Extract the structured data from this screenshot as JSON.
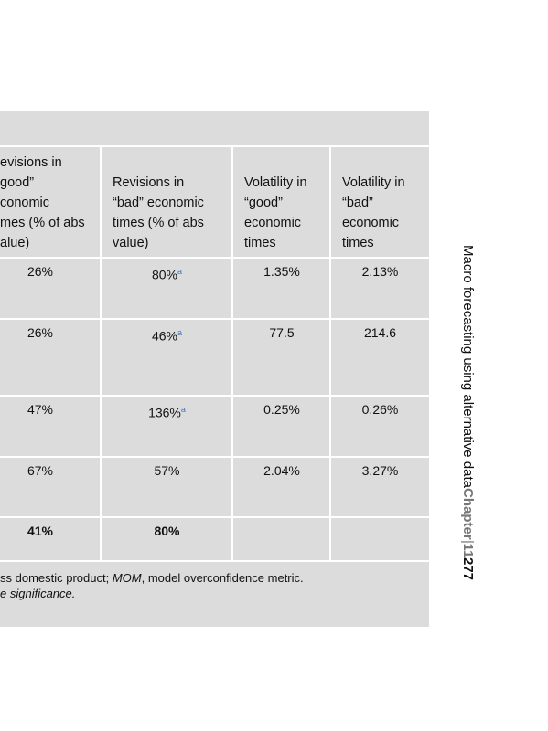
{
  "table": {
    "headers": [
      [
        "evisions in",
        "good”",
        "conomic",
        "mes (% of abs",
        "alue)"
      ],
      [
        "Revisions in",
        "“bad” economic",
        "times (% of abs",
        "value)"
      ],
      [
        "Volatility in",
        "“good”",
        "economic",
        "times"
      ],
      [
        "Volatility in",
        "“bad”",
        "economic",
        "times"
      ]
    ],
    "rows": [
      {
        "cells": [
          {
            "text": "26%"
          },
          {
            "text": "80%",
            "note": "a"
          },
          {
            "text": "1.35%"
          },
          {
            "text": "2.13%"
          }
        ]
      },
      {
        "cells": [
          {
            "text": "26%"
          },
          {
            "text": "46%",
            "note": "a"
          },
          {
            "text": "77.5"
          },
          {
            "text": "214.6"
          }
        ]
      },
      {
        "cells": [
          {
            "text": "47%"
          },
          {
            "text": "136%",
            "note": "a"
          },
          {
            "text": "0.25%"
          },
          {
            "text": "0.26%"
          }
        ]
      },
      {
        "cells": [
          {
            "text": "67%"
          },
          {
            "text": "57%"
          },
          {
            "text": "2.04%"
          },
          {
            "text": "3.27%"
          }
        ]
      },
      {
        "bold": true,
        "cells": [
          {
            "text": "41%"
          },
          {
            "text": "80%"
          }
        ]
      }
    ],
    "footnote": {
      "line1": [
        "ss domestic product; ",
        "MOM",
        ", model overconfidence metric."
      ],
      "line2": "e significance."
    }
  },
  "running_header": {
    "title": "Macro forecasting using alternative data",
    "chapter": "Chapter",
    "separator": "|",
    "chapter_number": "11",
    "page": "277"
  }
}
